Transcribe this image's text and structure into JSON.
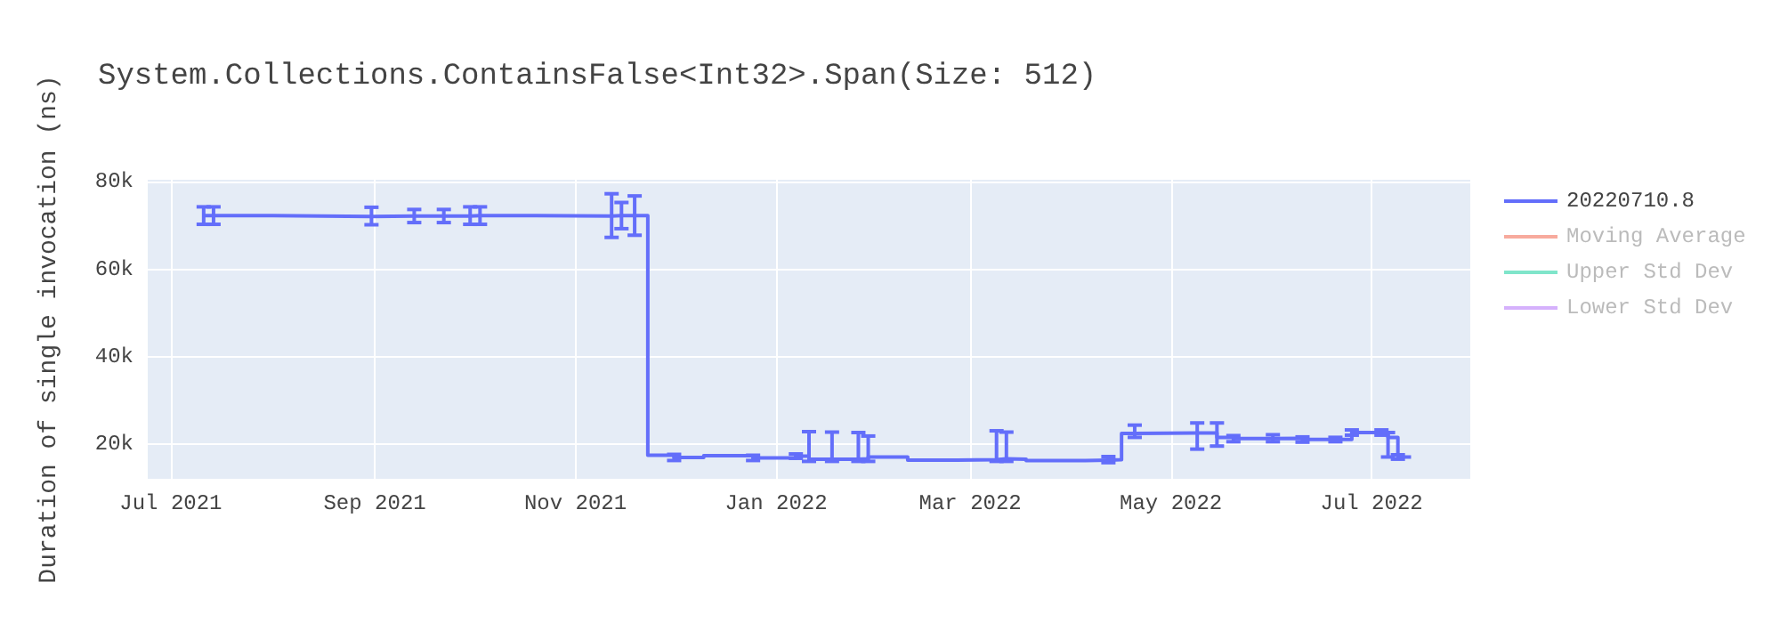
{
  "chart_data": {
    "type": "step",
    "title": "System.Collections.ContainsFalse<Int32>.Span(Size: 512)",
    "ylabel": "Duration of single invocation (ns)",
    "xlim": [
      "2021-06-24",
      "2022-07-31"
    ],
    "xticks": [
      {
        "value": "2021-07-01",
        "label": "Jul 2021"
      },
      {
        "value": "2021-09-01",
        "label": "Sep 2021"
      },
      {
        "value": "2021-11-01",
        "label": "Nov 2021"
      },
      {
        "value": "2022-01-01",
        "label": "Jan 2022"
      },
      {
        "value": "2022-03-01",
        "label": "Mar 2022"
      },
      {
        "value": "2022-05-01",
        "label": "May 2022"
      },
      {
        "value": "2022-07-01",
        "label": "Jul 2022"
      }
    ],
    "ylim": [
      12000,
      80500
    ],
    "yticks": [
      {
        "value": 20000,
        "label": "20k"
      },
      {
        "value": 40000,
        "label": "40k"
      },
      {
        "value": 60000,
        "label": "60k"
      },
      {
        "value": 80000,
        "label": "80k"
      }
    ],
    "grid": true,
    "legend": "top right",
    "marker": "none",
    "series": [
      {
        "name": "20220710.8",
        "color": "#636efa",
        "x": [
          "2021-07-11",
          "2021-07-14",
          "2021-08-01",
          "2021-08-31",
          "2021-09-13",
          "2021-09-22",
          "2021-09-30",
          "2021-10-03",
          "2021-10-20",
          "2021-11-12",
          "2021-11-15",
          "2021-11-19",
          "2021-11-23",
          "2021-12-01",
          "2021-12-10",
          "2021-12-25",
          "2022-01-07",
          "2022-01-11",
          "2022-01-18",
          "2022-01-26",
          "2022-01-29",
          "2022-02-10",
          "2022-02-25",
          "2022-03-09",
          "2022-03-12",
          "2022-03-18",
          "2022-04-05",
          "2022-04-12",
          "2022-04-16",
          "2022-04-20",
          "2022-05-09",
          "2022-05-15",
          "2022-05-20",
          "2022-06-01",
          "2022-06-10",
          "2022-06-20",
          "2022-06-25",
          "2022-07-04",
          "2022-07-06",
          "2022-07-09",
          "2022-07-13"
        ],
        "values": [
          72300,
          72300,
          72100,
          72200,
          72200,
          72200,
          72300,
          72300,
          72200,
          72300,
          72300,
          72300,
          17400,
          16900,
          17300,
          16800,
          17200,
          16500,
          16500,
          16600,
          17000,
          16300,
          16400,
          16600,
          16500,
          16200,
          16300,
          16400,
          22400,
          22500,
          22500,
          21500,
          21200,
          21300,
          21000,
          21000,
          22600,
          22600,
          21500,
          17000,
          17000
        ],
        "errors": [
          2000,
          2000,
          null,
          2000,
          1500,
          1500,
          2000,
          2000,
          null,
          5000,
          3000,
          4500,
          null,
          700,
          null,
          600,
          500,
          [
            16000,
            22800
          ],
          [
            16000,
            22700
          ],
          [
            16000,
            22600
          ],
          [
            16000,
            21800
          ],
          null,
          null,
          [
            16000,
            23000
          ],
          [
            16000,
            22700
          ],
          null,
          null,
          700,
          null,
          [
            21500,
            24300
          ],
          [
            18800,
            24800
          ],
          [
            19500,
            24800
          ],
          700,
          800,
          600,
          500,
          600,
          600,
          [
            17000,
            22600
          ],
          500,
          null
        ]
      },
      {
        "name": "Moving Average",
        "color": "#ef553b"
      },
      {
        "name": "Upper Std Dev",
        "color": "#00cc96"
      },
      {
        "name": "Lower Std Dev",
        "color": "#ab63fa"
      }
    ]
  }
}
